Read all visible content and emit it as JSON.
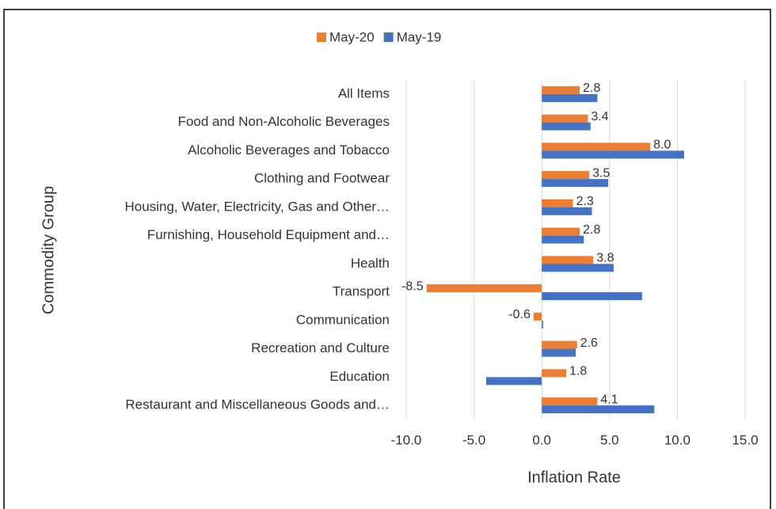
{
  "chart_data": {
    "type": "bar",
    "orientation": "horizontal",
    "x_label": "Inflation Rate",
    "y_label": "Commodity Group",
    "categories": [
      "All Items",
      "Food and Non-Alcoholic Beverages",
      "Alcoholic Beverages and Tobacco",
      "Clothing and Footwear",
      "Housing, Water, Electricity, Gas and Other…",
      "Furnishing, Household Equipment and…",
      "Health",
      "Transport",
      "Communication",
      "Recreation and Culture",
      "Education",
      "Restaurant and Miscellaneous Goods and…"
    ],
    "series": [
      {
        "name": "May-20",
        "color": "#ed7d31",
        "values": [
          2.8,
          3.4,
          8.0,
          3.5,
          2.3,
          2.8,
          3.8,
          -8.5,
          -0.6,
          2.6,
          1.8,
          4.1
        ],
        "value_labels": [
          "2.8",
          "3.4",
          "8.0",
          "3.5",
          "2.3",
          "2.8",
          "3.8",
          "-8.5",
          "-0.6",
          "2.6",
          "1.8",
          "4.1"
        ]
      },
      {
        "name": "May-19",
        "color": "#4472c4",
        "values": [
          4.1,
          3.6,
          10.5,
          4.9,
          3.7,
          3.1,
          5.3,
          7.4,
          0.1,
          2.5,
          -4.1,
          8.3
        ]
      }
    ],
    "xlim": [
      -10,
      15
    ],
    "xticks": [
      {
        "value": -10,
        "label": "-10.0"
      },
      {
        "value": -5,
        "label": "-5.0"
      },
      {
        "value": 0,
        "label": "0.0"
      },
      {
        "value": 5,
        "label": "5.0"
      },
      {
        "value": 10,
        "label": "10.0"
      },
      {
        "value": 15,
        "label": "15.0"
      }
    ],
    "grid": true,
    "legend": "top"
  }
}
